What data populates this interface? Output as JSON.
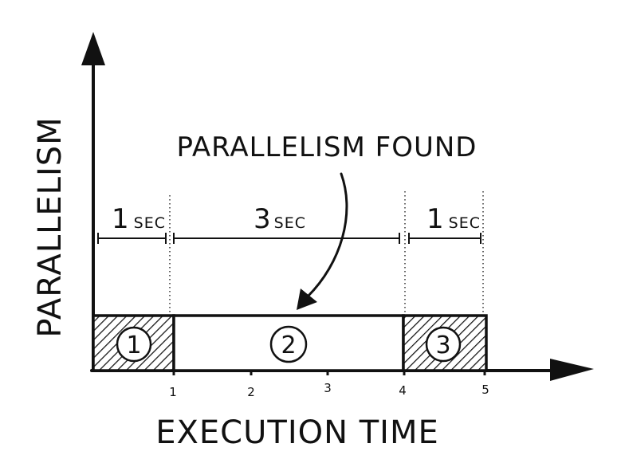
{
  "axes": {
    "y_label": "PARALLELISM",
    "x_label": "EXECUTION TIME",
    "x_ticks": [
      "1",
      "2",
      "3",
      "4",
      "5"
    ]
  },
  "annotation": "PARALLELISM FOUND",
  "durations": [
    {
      "num": "1",
      "unit": "SEC"
    },
    {
      "num": "3",
      "unit": "SEC"
    },
    {
      "num": "1",
      "unit": "SEC"
    }
  ],
  "phases": [
    {
      "label": "1",
      "hatched": true
    },
    {
      "label": "2",
      "hatched": false
    },
    {
      "label": "3",
      "hatched": true
    }
  ],
  "colors": {
    "ink": "#111111",
    "background": "#ffffff"
  }
}
